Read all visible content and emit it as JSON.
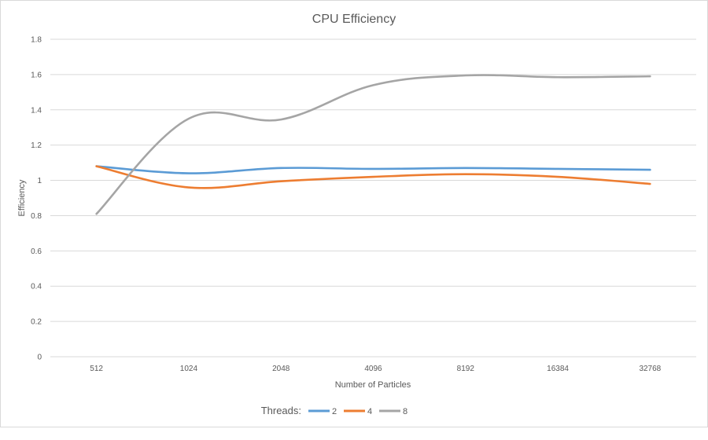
{
  "chart_data": {
    "type": "line",
    "title": "CPU Efficiency",
    "xlabel": "Number of Particles",
    "ylabel": "Efficiency",
    "categories": [
      "512",
      "1024",
      "2048",
      "4096",
      "8192",
      "16384",
      "32768"
    ],
    "ylim": [
      0,
      1.8
    ],
    "yticks": [
      "0",
      "0.2",
      "0.4",
      "0.6",
      "0.8",
      "1",
      "1.2",
      "1.4",
      "1.6",
      "1.8"
    ],
    "grid": true,
    "smooth": true,
    "legend_position": "bottom",
    "legend_title": "Threads:",
    "series": [
      {
        "name": "2",
        "color": "#5b9bd5",
        "values": [
          1.08,
          1.04,
          1.07,
          1.065,
          1.07,
          1.065,
          1.06
        ]
      },
      {
        "name": "4",
        "color": "#ed7d31",
        "values": [
          1.08,
          0.96,
          0.995,
          1.02,
          1.035,
          1.02,
          0.98
        ]
      },
      {
        "name": "8",
        "color": "#a5a5a5",
        "values": [
          0.81,
          1.35,
          1.345,
          1.54,
          1.595,
          1.585,
          1.59
        ]
      }
    ]
  }
}
